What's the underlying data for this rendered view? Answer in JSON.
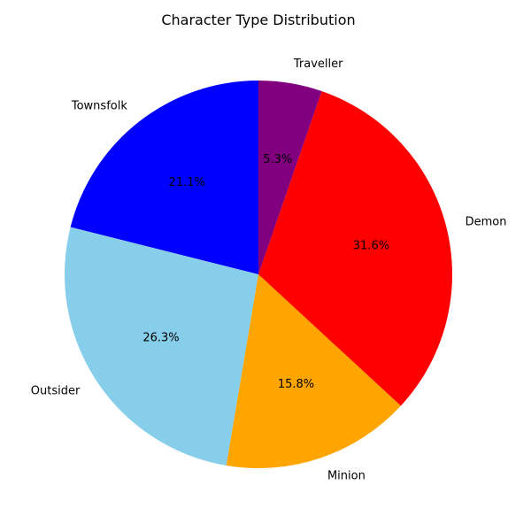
{
  "chart_data": {
    "type": "pie",
    "title": "Character Type Distribution",
    "start_angle_deg": 90,
    "direction": "counterclockwise",
    "slices": [
      {
        "label": "Townsfolk",
        "value": 21.1,
        "pct_text": "21.1%",
        "color": "#0000ff"
      },
      {
        "label": "Outsider",
        "value": 26.3,
        "pct_text": "26.3%",
        "color": "#87ceeb"
      },
      {
        "label": "Minion",
        "value": 15.8,
        "pct_text": "15.8%",
        "color": "#ffa500"
      },
      {
        "label": "Demon",
        "value": 31.6,
        "pct_text": "31.6%",
        "color": "#ff0000"
      },
      {
        "label": "Traveller",
        "value": 5.3,
        "pct_text": "5.3%",
        "color": "#800080"
      }
    ]
  }
}
